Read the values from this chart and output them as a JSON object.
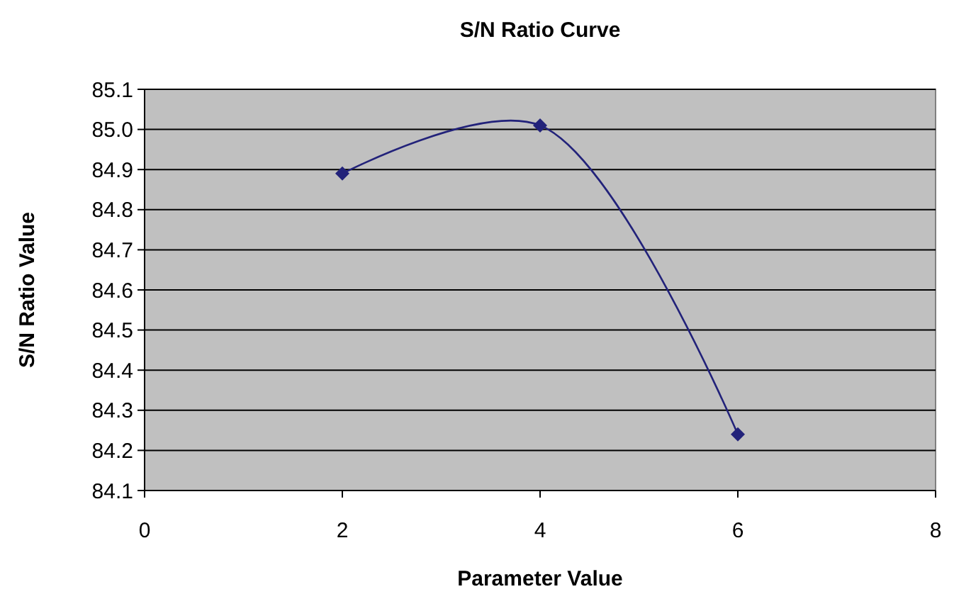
{
  "chart_data": {
    "type": "line",
    "title": "S/N Ratio Curve",
    "xlabel": "Parameter Value",
    "ylabel": "S/N Ratio Value",
    "x": [
      2,
      4,
      6
    ],
    "series": [
      {
        "color": "#22227a",
        "values": [
          84.89,
          85.01,
          84.24
        ]
      }
    ],
    "xlim": [
      0,
      8
    ],
    "xticks": [
      0,
      2,
      4,
      6,
      8
    ],
    "ylim": [
      84.1,
      85.1
    ],
    "yticks": [
      {
        "value": 84.1,
        "label": "84.1"
      },
      {
        "value": 84.2,
        "label": "84.2"
      },
      {
        "value": 84.3,
        "label": "84.3"
      },
      {
        "value": 84.4,
        "label": "84.4"
      },
      {
        "value": 84.5,
        "label": "84.5"
      },
      {
        "value": 84.6,
        "label": "84.6"
      },
      {
        "value": 84.7,
        "label": "84.7"
      },
      {
        "value": 84.8,
        "label": "84.8"
      },
      {
        "value": 84.9,
        "label": "84.9"
      },
      {
        "value": 85.0,
        "label": "85.0"
      },
      {
        "value": 85.1,
        "label": "85.1"
      }
    ],
    "grid": "y",
    "marker": "diamond",
    "line_style": "solid"
  }
}
